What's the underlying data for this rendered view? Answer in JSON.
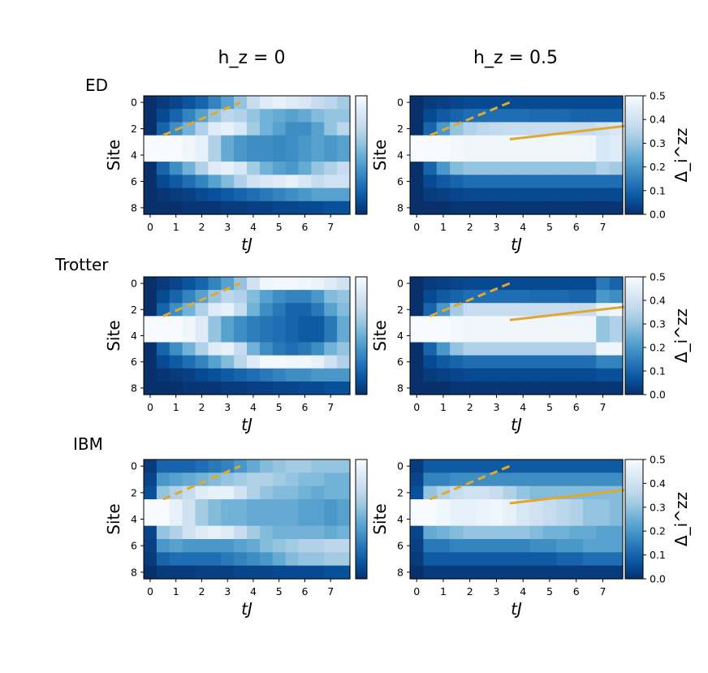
{
  "chart_data": {
    "type": "heatmap",
    "column_titles": [
      "h_z = 0",
      "h_z = 0.5"
    ],
    "row_labels": [
      "ED",
      "Trotter",
      "IBM"
    ],
    "xlabel": "tJ",
    "ylabel": "Site",
    "colorbar_label": "Δ_i^zz",
    "xticks": [
      0,
      1,
      2,
      3,
      4,
      5,
      6,
      7
    ],
    "yticks": [
      0,
      2,
      4,
      6,
      8
    ],
    "colorbar_ticks": [
      "0.0",
      "0.1",
      "0.2",
      "0.3",
      "0.4",
      "0.5"
    ],
    "vmin": 0.0,
    "vmax": 0.5,
    "colormap": "Blues_r",
    "times": [
      0.0,
      0.5,
      1.0,
      1.5,
      2.0,
      2.5,
      3.0,
      3.5,
      4.0,
      4.5,
      5.0,
      5.5,
      6.0,
      6.5,
      7.0,
      7.5
    ],
    "sites": [
      0,
      1,
      2,
      3,
      4,
      5,
      6,
      7,
      8
    ],
    "line_color": "#e0a82e",
    "panels": [
      {
        "row": "ED",
        "hz": 0,
        "dashed_line": {
          "x": [
            0.5,
            3.5
          ],
          "y": [
            2.5,
            0.0
          ]
        },
        "values": [
          [
            0.0,
            0.02,
            0.04,
            0.07,
            0.1,
            0.16,
            0.22,
            0.3,
            0.38,
            0.44,
            0.46,
            0.44,
            0.42,
            0.38,
            0.36,
            0.32
          ],
          [
            0.0,
            0.05,
            0.1,
            0.16,
            0.22,
            0.3,
            0.36,
            0.34,
            0.3,
            0.26,
            0.24,
            0.22,
            0.24,
            0.28,
            0.3,
            0.3
          ],
          [
            0.0,
            0.1,
            0.18,
            0.26,
            0.34,
            0.44,
            0.46,
            0.42,
            0.32,
            0.26,
            0.22,
            0.18,
            0.18,
            0.22,
            0.3,
            0.36
          ],
          [
            0.5,
            0.5,
            0.5,
            0.48,
            0.46,
            0.34,
            0.24,
            0.2,
            0.18,
            0.18,
            0.17,
            0.18,
            0.2,
            0.22,
            0.2,
            0.22
          ],
          [
            0.5,
            0.5,
            0.5,
            0.48,
            0.46,
            0.34,
            0.24,
            0.2,
            0.18,
            0.18,
            0.17,
            0.18,
            0.2,
            0.22,
            0.2,
            0.22
          ],
          [
            0.0,
            0.1,
            0.18,
            0.26,
            0.34,
            0.44,
            0.46,
            0.42,
            0.32,
            0.26,
            0.22,
            0.2,
            0.24,
            0.3,
            0.34,
            0.38
          ],
          [
            0.0,
            0.05,
            0.08,
            0.12,
            0.16,
            0.22,
            0.28,
            0.34,
            0.4,
            0.42,
            0.44,
            0.46,
            0.42,
            0.38,
            0.4,
            0.4
          ],
          [
            0.0,
            0.01,
            0.02,
            0.03,
            0.05,
            0.06,
            0.08,
            0.1,
            0.12,
            0.14,
            0.16,
            0.18,
            0.2,
            0.22,
            0.22,
            0.22
          ],
          [
            0.0,
            0.0,
            0.0,
            0.01,
            0.01,
            0.01,
            0.02,
            0.02,
            0.03,
            0.03,
            0.04,
            0.04,
            0.05,
            0.05,
            0.06,
            0.06
          ]
        ]
      },
      {
        "row": "ED",
        "hz": 0.5,
        "dashed_line": {
          "x": [
            0.5,
            3.5
          ],
          "y": [
            2.5,
            0.0
          ]
        },
        "solid_line": {
          "x": [
            3.5,
            7.8
          ],
          "y": [
            2.8,
            1.8
          ]
        },
        "values": [
          [
            0.0,
            0.02,
            0.03,
            0.04,
            0.05,
            0.05,
            0.05,
            0.05,
            0.05,
            0.05,
            0.05,
            0.05,
            0.05,
            0.05,
            0.05,
            0.05
          ],
          [
            0.0,
            0.05,
            0.08,
            0.1,
            0.12,
            0.12,
            0.12,
            0.12,
            0.12,
            0.11,
            0.11,
            0.11,
            0.1,
            0.1,
            0.1,
            0.1
          ],
          [
            0.0,
            0.1,
            0.2,
            0.3,
            0.34,
            0.36,
            0.37,
            0.38,
            0.38,
            0.38,
            0.38,
            0.38,
            0.38,
            0.38,
            0.4,
            0.42
          ],
          [
            0.5,
            0.5,
            0.5,
            0.49,
            0.48,
            0.48,
            0.48,
            0.48,
            0.48,
            0.48,
            0.48,
            0.48,
            0.48,
            0.48,
            0.42,
            0.44
          ],
          [
            0.5,
            0.5,
            0.5,
            0.49,
            0.48,
            0.48,
            0.48,
            0.48,
            0.48,
            0.48,
            0.48,
            0.48,
            0.48,
            0.48,
            0.42,
            0.44
          ],
          [
            0.0,
            0.1,
            0.2,
            0.28,
            0.3,
            0.3,
            0.3,
            0.3,
            0.3,
            0.3,
            0.3,
            0.3,
            0.3,
            0.3,
            0.34,
            0.32
          ],
          [
            0.0,
            0.05,
            0.08,
            0.1,
            0.12,
            0.12,
            0.12,
            0.12,
            0.12,
            0.12,
            0.12,
            0.12,
            0.12,
            0.12,
            0.12,
            0.12
          ],
          [
            0.0,
            0.02,
            0.03,
            0.04,
            0.05,
            0.05,
            0.05,
            0.05,
            0.05,
            0.05,
            0.05,
            0.05,
            0.05,
            0.05,
            0.05,
            0.05
          ],
          [
            0.0,
            0.0,
            0.0,
            0.01,
            0.01,
            0.01,
            0.01,
            0.01,
            0.01,
            0.01,
            0.01,
            0.01,
            0.01,
            0.01,
            0.01,
            0.01
          ]
        ]
      },
      {
        "row": "Trotter",
        "hz": 0,
        "dashed_line": {
          "x": [
            0.5,
            3.5
          ],
          "y": [
            2.5,
            0.0
          ]
        },
        "values": [
          [
            0.0,
            0.02,
            0.04,
            0.07,
            0.1,
            0.16,
            0.22,
            0.3,
            0.4,
            0.48,
            0.49,
            0.49,
            0.48,
            0.47,
            0.44,
            0.4
          ],
          [
            0.0,
            0.05,
            0.1,
            0.16,
            0.22,
            0.3,
            0.36,
            0.34,
            0.28,
            0.22,
            0.18,
            0.16,
            0.16,
            0.2,
            0.28,
            0.3
          ],
          [
            0.0,
            0.1,
            0.18,
            0.26,
            0.34,
            0.44,
            0.46,
            0.38,
            0.26,
            0.18,
            0.14,
            0.1,
            0.1,
            0.14,
            0.22,
            0.28
          ],
          [
            0.5,
            0.5,
            0.5,
            0.48,
            0.44,
            0.3,
            0.22,
            0.18,
            0.15,
            0.13,
            0.12,
            0.1,
            0.08,
            0.08,
            0.14,
            0.24
          ],
          [
            0.5,
            0.5,
            0.5,
            0.48,
            0.44,
            0.3,
            0.22,
            0.18,
            0.15,
            0.13,
            0.12,
            0.1,
            0.08,
            0.08,
            0.14,
            0.24
          ],
          [
            0.0,
            0.1,
            0.18,
            0.26,
            0.34,
            0.44,
            0.46,
            0.38,
            0.26,
            0.18,
            0.14,
            0.12,
            0.14,
            0.18,
            0.26,
            0.3
          ],
          [
            0.0,
            0.05,
            0.08,
            0.12,
            0.16,
            0.22,
            0.28,
            0.36,
            0.44,
            0.49,
            0.49,
            0.48,
            0.48,
            0.46,
            0.4,
            0.34
          ],
          [
            0.0,
            0.01,
            0.02,
            0.03,
            0.05,
            0.06,
            0.08,
            0.1,
            0.12,
            0.14,
            0.16,
            0.18,
            0.18,
            0.2,
            0.2,
            0.2
          ],
          [
            0.0,
            0.0,
            0.0,
            0.01,
            0.01,
            0.01,
            0.02,
            0.02,
            0.03,
            0.03,
            0.04,
            0.04,
            0.05,
            0.05,
            0.06,
            0.06
          ]
        ]
      },
      {
        "row": "Trotter",
        "hz": 0.5,
        "dashed_line": {
          "x": [
            0.5,
            3.5
          ],
          "y": [
            2.5,
            0.0
          ]
        },
        "solid_line": {
          "x": [
            3.5,
            7.8
          ],
          "y": [
            2.8,
            1.8
          ]
        },
        "values": [
          [
            0.0,
            0.02,
            0.03,
            0.04,
            0.05,
            0.05,
            0.05,
            0.05,
            0.05,
            0.05,
            0.05,
            0.05,
            0.05,
            0.05,
            0.14,
            0.1
          ],
          [
            0.0,
            0.05,
            0.08,
            0.1,
            0.12,
            0.12,
            0.12,
            0.12,
            0.12,
            0.11,
            0.11,
            0.11,
            0.1,
            0.1,
            0.2,
            0.18
          ],
          [
            0.0,
            0.1,
            0.2,
            0.32,
            0.38,
            0.38,
            0.38,
            0.38,
            0.38,
            0.38,
            0.38,
            0.38,
            0.38,
            0.38,
            0.46,
            0.48
          ],
          [
            0.5,
            0.5,
            0.5,
            0.49,
            0.48,
            0.48,
            0.48,
            0.48,
            0.48,
            0.48,
            0.48,
            0.48,
            0.48,
            0.48,
            0.3,
            0.34
          ],
          [
            0.5,
            0.5,
            0.5,
            0.49,
            0.48,
            0.48,
            0.48,
            0.48,
            0.48,
            0.48,
            0.48,
            0.48,
            0.48,
            0.48,
            0.3,
            0.34
          ],
          [
            0.0,
            0.1,
            0.2,
            0.3,
            0.34,
            0.34,
            0.34,
            0.34,
            0.34,
            0.34,
            0.34,
            0.34,
            0.34,
            0.34,
            0.48,
            0.48
          ],
          [
            0.0,
            0.05,
            0.08,
            0.1,
            0.12,
            0.12,
            0.12,
            0.12,
            0.12,
            0.12,
            0.12,
            0.12,
            0.12,
            0.12,
            0.16,
            0.16
          ],
          [
            0.0,
            0.02,
            0.03,
            0.04,
            0.05,
            0.05,
            0.05,
            0.05,
            0.05,
            0.05,
            0.05,
            0.05,
            0.05,
            0.05,
            0.06,
            0.06
          ],
          [
            0.0,
            0.0,
            0.0,
            0.01,
            0.01,
            0.01,
            0.01,
            0.01,
            0.01,
            0.01,
            0.01,
            0.01,
            0.01,
            0.01,
            0.01,
            0.01
          ]
        ]
      },
      {
        "row": "IBM",
        "hz": 0,
        "dashed_line": {
          "x": [
            0.5,
            3.5
          ],
          "y": [
            2.5,
            0.0
          ]
        },
        "values": [
          [
            0.02,
            0.1,
            0.1,
            0.1,
            0.12,
            0.14,
            0.16,
            0.2,
            0.24,
            0.28,
            0.3,
            0.32,
            0.32,
            0.3,
            0.3,
            0.3
          ],
          [
            0.04,
            0.2,
            0.22,
            0.24,
            0.26,
            0.28,
            0.3,
            0.32,
            0.34,
            0.34,
            0.32,
            0.3,
            0.28,
            0.28,
            0.26,
            0.26
          ],
          [
            0.06,
            0.3,
            0.34,
            0.38,
            0.44,
            0.46,
            0.46,
            0.4,
            0.34,
            0.3,
            0.28,
            0.28,
            0.26,
            0.24,
            0.26,
            0.26
          ],
          [
            0.5,
            0.5,
            0.46,
            0.4,
            0.32,
            0.28,
            0.26,
            0.26,
            0.24,
            0.24,
            0.24,
            0.24,
            0.22,
            0.22,
            0.2,
            0.22
          ],
          [
            0.5,
            0.5,
            0.46,
            0.4,
            0.32,
            0.28,
            0.26,
            0.26,
            0.24,
            0.24,
            0.24,
            0.24,
            0.22,
            0.22,
            0.2,
            0.22
          ],
          [
            0.04,
            0.3,
            0.34,
            0.4,
            0.44,
            0.46,
            0.44,
            0.38,
            0.32,
            0.28,
            0.26,
            0.26,
            0.26,
            0.26,
            0.24,
            0.26
          ],
          [
            0.03,
            0.2,
            0.22,
            0.2,
            0.2,
            0.2,
            0.2,
            0.22,
            0.24,
            0.28,
            0.3,
            0.32,
            0.34,
            0.34,
            0.36,
            0.36
          ],
          [
            0.02,
            0.1,
            0.12,
            0.12,
            0.12,
            0.12,
            0.14,
            0.16,
            0.18,
            0.2,
            0.24,
            0.28,
            0.3,
            0.3,
            0.32,
            0.32
          ],
          [
            0.0,
            0.02,
            0.02,
            0.02,
            0.03,
            0.03,
            0.03,
            0.04,
            0.04,
            0.04,
            0.05,
            0.05,
            0.05,
            0.05,
            0.06,
            0.06
          ]
        ]
      },
      {
        "row": "IBM",
        "hz": 0.5,
        "dashed_line": {
          "x": [
            0.5,
            3.5
          ],
          "y": [
            2.5,
            0.0
          ]
        },
        "solid_line": {
          "x": [
            3.5,
            7.8
          ],
          "y": [
            2.8,
            1.8
          ]
        },
        "values": [
          [
            0.02,
            0.08,
            0.08,
            0.08,
            0.08,
            0.08,
            0.08,
            0.08,
            0.08,
            0.08,
            0.08,
            0.08,
            0.08,
            0.08,
            0.08,
            0.08
          ],
          [
            0.04,
            0.16,
            0.16,
            0.18,
            0.18,
            0.18,
            0.18,
            0.18,
            0.18,
            0.18,
            0.18,
            0.18,
            0.18,
            0.18,
            0.18,
            0.18
          ],
          [
            0.06,
            0.3,
            0.34,
            0.38,
            0.4,
            0.4,
            0.38,
            0.34,
            0.3,
            0.28,
            0.28,
            0.28,
            0.28,
            0.28,
            0.28,
            0.28
          ],
          [
            0.5,
            0.5,
            0.48,
            0.46,
            0.46,
            0.47,
            0.48,
            0.46,
            0.42,
            0.4,
            0.38,
            0.36,
            0.34,
            0.3,
            0.3,
            0.28
          ],
          [
            0.5,
            0.5,
            0.48,
            0.46,
            0.46,
            0.47,
            0.48,
            0.46,
            0.42,
            0.4,
            0.38,
            0.36,
            0.34,
            0.3,
            0.3,
            0.28
          ],
          [
            0.04,
            0.24,
            0.26,
            0.28,
            0.3,
            0.3,
            0.3,
            0.3,
            0.3,
            0.28,
            0.26,
            0.26,
            0.24,
            0.24,
            0.22,
            0.22
          ],
          [
            0.03,
            0.14,
            0.14,
            0.16,
            0.16,
            0.16,
            0.16,
            0.16,
            0.16,
            0.18,
            0.18,
            0.2,
            0.2,
            0.22,
            0.22,
            0.22
          ],
          [
            0.02,
            0.08,
            0.08,
            0.08,
            0.08,
            0.08,
            0.08,
            0.08,
            0.08,
            0.08,
            0.08,
            0.1,
            0.1,
            0.12,
            0.12,
            0.12
          ],
          [
            0.0,
            0.02,
            0.02,
            0.02,
            0.02,
            0.02,
            0.02,
            0.02,
            0.02,
            0.02,
            0.02,
            0.02,
            0.02,
            0.02,
            0.02,
            0.02
          ]
        ]
      }
    ]
  }
}
